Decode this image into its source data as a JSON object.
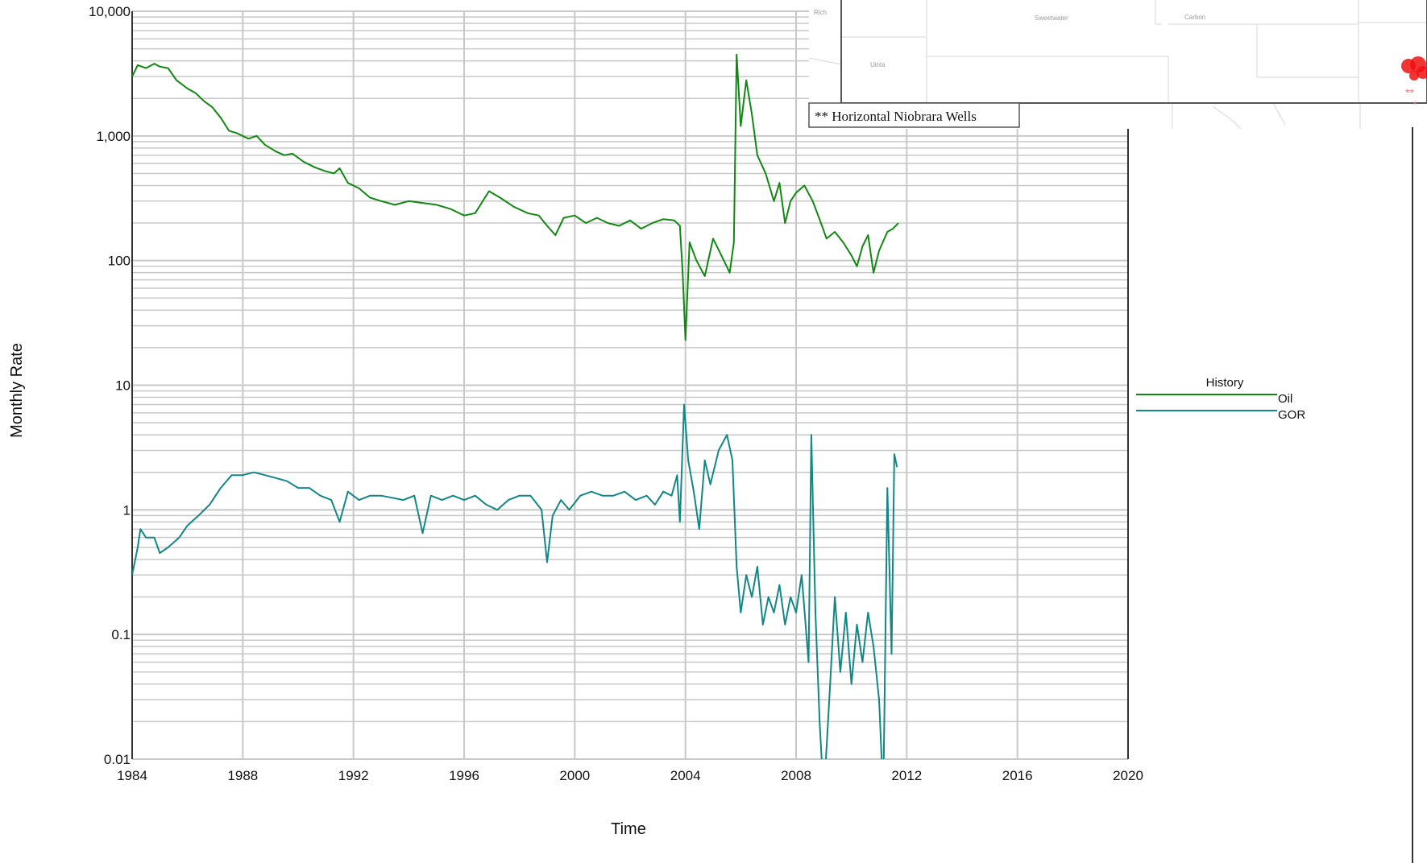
{
  "chart_data": {
    "type": "line",
    "xlabel": "Time",
    "ylabel": "Monthly Rate",
    "x_scale": "time",
    "y_scale": "log",
    "xlim": [
      1984,
      2020
    ],
    "ylim": [
      0.01,
      10000
    ],
    "x_ticks": [
      "1984",
      "1988",
      "1992",
      "1996",
      "2000",
      "2004",
      "2008",
      "2012",
      "2016",
      "2020"
    ],
    "y_ticks": [
      "0.01",
      "0.1",
      "1",
      "10",
      "100",
      "1,000",
      "10,000"
    ],
    "grid": true,
    "legend": {
      "title": "History",
      "position": "right"
    },
    "series": [
      {
        "name": "Oil",
        "color": "#118811",
        "points": [
          [
            1984.0,
            3000
          ],
          [
            1984.2,
            3700
          ],
          [
            1984.5,
            3500
          ],
          [
            1984.8,
            3800
          ],
          [
            1985.0,
            3600
          ],
          [
            1985.3,
            3500
          ],
          [
            1985.6,
            2800
          ],
          [
            1986.0,
            2400
          ],
          [
            1986.3,
            2200
          ],
          [
            1986.6,
            1900
          ],
          [
            1986.9,
            1700
          ],
          [
            1987.2,
            1400
          ],
          [
            1987.5,
            1100
          ],
          [
            1987.8,
            1050
          ],
          [
            1988.2,
            950
          ],
          [
            1988.5,
            1000
          ],
          [
            1988.8,
            850
          ],
          [
            1989.2,
            750
          ],
          [
            1989.5,
            700
          ],
          [
            1989.8,
            720
          ],
          [
            1990.2,
            620
          ],
          [
            1990.6,
            560
          ],
          [
            1991.0,
            520
          ],
          [
            1991.3,
            500
          ],
          [
            1991.5,
            550
          ],
          [
            1991.8,
            420
          ],
          [
            1992.2,
            380
          ],
          [
            1992.6,
            320
          ],
          [
            1993.0,
            300
          ],
          [
            1993.5,
            280
          ],
          [
            1994.0,
            300
          ],
          [
            1994.5,
            290
          ],
          [
            1995.0,
            280
          ],
          [
            1995.5,
            260
          ],
          [
            1996.0,
            230
          ],
          [
            1996.4,
            240
          ],
          [
            1996.9,
            360
          ],
          [
            1997.3,
            320
          ],
          [
            1997.8,
            270
          ],
          [
            1998.3,
            240
          ],
          [
            1998.7,
            230
          ],
          [
            1999.0,
            190
          ],
          [
            1999.3,
            160
          ],
          [
            1999.6,
            220
          ],
          [
            2000.0,
            230
          ],
          [
            2000.4,
            200
          ],
          [
            2000.8,
            220
          ],
          [
            2001.2,
            200
          ],
          [
            2001.6,
            190
          ],
          [
            2002.0,
            210
          ],
          [
            2002.4,
            180
          ],
          [
            2002.8,
            200
          ],
          [
            2003.2,
            215
          ],
          [
            2003.6,
            210
          ],
          [
            2003.8,
            190
          ],
          [
            2003.9,
            80
          ],
          [
            2004.0,
            23
          ],
          [
            2004.15,
            140
          ],
          [
            2004.4,
            100
          ],
          [
            2004.7,
            75
          ],
          [
            2005.0,
            150
          ],
          [
            2005.3,
            110
          ],
          [
            2005.6,
            80
          ],
          [
            2005.75,
            140
          ],
          [
            2005.85,
            4500
          ],
          [
            2006.0,
            1200
          ],
          [
            2006.2,
            2800
          ],
          [
            2006.4,
            1500
          ],
          [
            2006.6,
            700
          ],
          [
            2006.9,
            500
          ],
          [
            2007.2,
            300
          ],
          [
            2007.4,
            420
          ],
          [
            2007.6,
            200
          ],
          [
            2007.8,
            300
          ],
          [
            2008.0,
            350
          ],
          [
            2008.3,
            400
          ],
          [
            2008.6,
            300
          ],
          [
            2008.9,
            200
          ],
          [
            2009.1,
            150
          ],
          [
            2009.4,
            170
          ],
          [
            2009.7,
            140
          ],
          [
            2010.0,
            110
          ],
          [
            2010.2,
            90
          ],
          [
            2010.4,
            130
          ],
          [
            2010.6,
            160
          ],
          [
            2010.8,
            80
          ],
          [
            2011.0,
            120
          ],
          [
            2011.3,
            170
          ],
          [
            2011.5,
            180
          ],
          [
            2011.7,
            200
          ]
        ]
      },
      {
        "name": "GOR",
        "color": "#138686",
        "points": [
          [
            1984.0,
            0.3
          ],
          [
            1984.2,
            0.5
          ],
          [
            1984.3,
            0.7
          ],
          [
            1984.5,
            0.6
          ],
          [
            1984.8,
            0.6
          ],
          [
            1985.0,
            0.45
          ],
          [
            1985.3,
            0.5
          ],
          [
            1985.7,
            0.6
          ],
          [
            1986.0,
            0.75
          ],
          [
            1986.4,
            0.9
          ],
          [
            1986.8,
            1.1
          ],
          [
            1987.2,
            1.5
          ],
          [
            1987.6,
            1.9
          ],
          [
            1988.0,
            1.9
          ],
          [
            1988.4,
            2.0
          ],
          [
            1988.8,
            1.9
          ],
          [
            1989.2,
            1.8
          ],
          [
            1989.6,
            1.7
          ],
          [
            1990.0,
            1.5
          ],
          [
            1990.4,
            1.5
          ],
          [
            1990.8,
            1.3
          ],
          [
            1991.2,
            1.2
          ],
          [
            1991.5,
            0.8
          ],
          [
            1991.8,
            1.4
          ],
          [
            1992.2,
            1.2
          ],
          [
            1992.6,
            1.3
          ],
          [
            1993.0,
            1.3
          ],
          [
            1993.4,
            1.25
          ],
          [
            1993.8,
            1.2
          ],
          [
            1994.2,
            1.3
          ],
          [
            1994.5,
            0.65
          ],
          [
            1994.8,
            1.3
          ],
          [
            1995.2,
            1.2
          ],
          [
            1995.6,
            1.3
          ],
          [
            1996.0,
            1.2
          ],
          [
            1996.4,
            1.3
          ],
          [
            1996.8,
            1.1
          ],
          [
            1997.2,
            1.0
          ],
          [
            1997.6,
            1.2
          ],
          [
            1998.0,
            1.3
          ],
          [
            1998.4,
            1.3
          ],
          [
            1998.8,
            1.0
          ],
          [
            1999.0,
            0.38
          ],
          [
            1999.2,
            0.9
          ],
          [
            1999.5,
            1.2
          ],
          [
            1999.8,
            1.0
          ],
          [
            2000.2,
            1.3
          ],
          [
            2000.6,
            1.4
          ],
          [
            2001.0,
            1.3
          ],
          [
            2001.4,
            1.3
          ],
          [
            2001.8,
            1.4
          ],
          [
            2002.2,
            1.2
          ],
          [
            2002.6,
            1.3
          ],
          [
            2002.9,
            1.1
          ],
          [
            2003.2,
            1.4
          ],
          [
            2003.5,
            1.3
          ],
          [
            2003.7,
            1.9
          ],
          [
            2003.8,
            0.8
          ],
          [
            2003.95,
            7.0
          ],
          [
            2004.1,
            2.5
          ],
          [
            2004.3,
            1.4
          ],
          [
            2004.5,
            0.7
          ],
          [
            2004.7,
            2.5
          ],
          [
            2004.9,
            1.6
          ],
          [
            2005.2,
            3.0
          ],
          [
            2005.5,
            4.0
          ],
          [
            2005.7,
            2.5
          ],
          [
            2005.85,
            0.35
          ],
          [
            2006.0,
            0.15
          ],
          [
            2006.2,
            0.3
          ],
          [
            2006.4,
            0.2
          ],
          [
            2006.6,
            0.35
          ],
          [
            2006.8,
            0.12
          ],
          [
            2007.0,
            0.2
          ],
          [
            2007.2,
            0.15
          ],
          [
            2007.4,
            0.25
          ],
          [
            2007.6,
            0.12
          ],
          [
            2007.8,
            0.2
          ],
          [
            2008.0,
            0.15
          ],
          [
            2008.2,
            0.3
          ],
          [
            2008.45,
            0.06
          ],
          [
            2008.55,
            4.0
          ],
          [
            2008.7,
            0.15
          ],
          [
            2008.85,
            0.02
          ],
          [
            2009.0,
            0.005
          ],
          [
            2009.2,
            0.03
          ],
          [
            2009.4,
            0.2
          ],
          [
            2009.6,
            0.05
          ],
          [
            2009.8,
            0.15
          ],
          [
            2010.0,
            0.04
          ],
          [
            2010.2,
            0.12
          ],
          [
            2010.4,
            0.06
          ],
          [
            2010.6,
            0.15
          ],
          [
            2010.8,
            0.08
          ],
          [
            2011.0,
            0.03
          ],
          [
            2011.15,
            0.005
          ],
          [
            2011.3,
            1.5
          ],
          [
            2011.45,
            0.07
          ],
          [
            2011.55,
            2.8
          ],
          [
            2011.65,
            2.2
          ]
        ]
      }
    ]
  },
  "map_inset": {
    "caption": "** Horizontal Niobrara Wells",
    "region_labels": [
      "Rich",
      "Sweetwater",
      "Carbon",
      "Uinta"
    ]
  }
}
